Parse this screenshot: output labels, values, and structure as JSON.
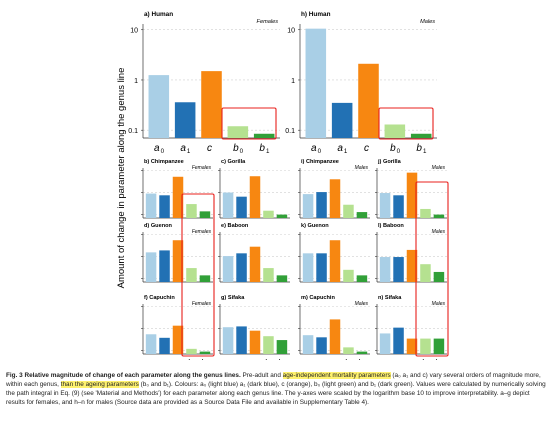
{
  "colors": {
    "a0": "#a9cfe6",
    "a1": "#2271b4",
    "c": "#f78711",
    "b0": "#b5e190",
    "b1": "#31a038",
    "highlight_box": "#e8201c",
    "caption_highlight": "#fff26e"
  },
  "figure": {
    "ylabel": "Amount of change in parameter along the genus line",
    "param_symbols": [
      "a",
      "a",
      "c",
      "b",
      "b"
    ],
    "param_subscripts": [
      "0",
      "1",
      "",
      "0",
      "1"
    ],
    "big_ticks": [
      "10",
      "1",
      "0.1"
    ],
    "small_ticks": [
      "10",
      "1",
      "0.1"
    ],
    "females": "Females",
    "males": "Males"
  },
  "chart_data": [
    {
      "panel": "a",
      "title": "a) Human",
      "sex": "Females",
      "type": "bar",
      "log_scale": true,
      "ylim": [
        0.07,
        13
      ],
      "categories": [
        "a0",
        "a1",
        "c",
        "b0",
        "b1"
      ],
      "values": [
        1.25,
        0.36,
        1.5,
        0.12,
        0.085
      ]
    },
    {
      "panel": "h",
      "title": "h) Human",
      "sex": "Males",
      "type": "bar",
      "log_scale": true,
      "ylim": [
        0.07,
        13
      ],
      "categories": [
        "a0",
        "a1",
        "c",
        "b0",
        "b1"
      ],
      "values": [
        10.5,
        0.35,
        2.1,
        0.13,
        0.085
      ]
    },
    {
      "panel": "b",
      "title": "b) Chimpanzee",
      "sex": "Females",
      "type": "bar",
      "log_scale": true,
      "ylim": [
        0.07,
        13
      ],
      "categories": [
        "a0",
        "a1",
        "c",
        "b0",
        "b1"
      ],
      "values": [
        0.9,
        0.75,
        5.2,
        0.3,
        0.14
      ]
    },
    {
      "panel": "c",
      "title": "c) Gorilla",
      "sex": "",
      "type": "bar",
      "log_scale": true,
      "ylim": [
        0.07,
        13
      ],
      "categories": [
        "a0",
        "a1",
        "c",
        "b0",
        "b1"
      ],
      "values": [
        1.0,
        0.65,
        5.5,
        0.15,
        0.1
      ]
    },
    {
      "panel": "i",
      "title": "i) Chimpanzee",
      "sex": "Males",
      "type": "bar",
      "log_scale": true,
      "ylim": [
        0.07,
        13
      ],
      "categories": [
        "a0",
        "a1",
        "c",
        "b0",
        "b1"
      ],
      "values": [
        0.85,
        1.05,
        4.0,
        0.28,
        0.13
      ]
    },
    {
      "panel": "j",
      "title": "j) Gorilla",
      "sex": "Males",
      "type": "bar",
      "log_scale": true,
      "ylim": [
        0.07,
        13
      ],
      "categories": [
        "a0",
        "a1",
        "c",
        "b0",
        "b1"
      ],
      "values": [
        0.95,
        0.75,
        8.0,
        0.18,
        0.1
      ]
    },
    {
      "panel": "d",
      "title": "d) Guenon",
      "sex": "Females",
      "type": "bar",
      "log_scale": true,
      "ylim": [
        0.07,
        13
      ],
      "categories": [
        "a0",
        "a1",
        "c",
        "b0",
        "b1"
      ],
      "values": [
        1.55,
        1.9,
        5.5,
        0.3,
        0.14
      ]
    },
    {
      "panel": "e",
      "title": "e) Baboon",
      "sex": "",
      "type": "bar",
      "log_scale": true,
      "ylim": [
        0.07,
        13
      ],
      "categories": [
        "a0",
        "a1",
        "c",
        "b0",
        "b1"
      ],
      "values": [
        1.05,
        1.4,
        2.8,
        0.3,
        0.14
      ]
    },
    {
      "panel": "k",
      "title": "k) Guenon",
      "sex": "",
      "type": "bar",
      "log_scale": true,
      "ylim": [
        0.07,
        13
      ],
      "categories": [
        "a0",
        "a1",
        "c",
        "b0",
        "b1"
      ],
      "values": [
        1.4,
        1.4,
        5.5,
        0.25,
        0.14
      ]
    },
    {
      "panel": "l",
      "title": "l) Baboon",
      "sex": "Males",
      "type": "bar",
      "log_scale": true,
      "ylim": [
        0.07,
        13
      ],
      "categories": [
        "a0",
        "a1",
        "c",
        "b0",
        "b1"
      ],
      "values": [
        0.95,
        0.95,
        2.0,
        0.45,
        0.2
      ]
    },
    {
      "panel": "f",
      "title": "f) Capuchin",
      "sex": "Females",
      "type": "bar",
      "log_scale": true,
      "ylim": [
        0.07,
        13
      ],
      "categories": [
        "a0",
        "a1",
        "c",
        "b0",
        "b1"
      ],
      "values": [
        0.55,
        0.38,
        1.35,
        0.12,
        0.09
      ]
    },
    {
      "panel": "g",
      "title": "g) Sifaka",
      "sex": "",
      "type": "bar",
      "log_scale": true,
      "ylim": [
        0.07,
        13
      ],
      "categories": [
        "a0",
        "a1",
        "c",
        "b0",
        "b1"
      ],
      "values": [
        1.15,
        1.25,
        0.8,
        0.45,
        0.3
      ]
    },
    {
      "panel": "m",
      "title": "m) Capuchin",
      "sex": "Males",
      "type": "bar",
      "log_scale": true,
      "ylim": [
        0.07,
        13
      ],
      "categories": [
        "a0",
        "a1",
        "c",
        "b0",
        "b1"
      ],
      "values": [
        0.5,
        0.4,
        2.6,
        0.14,
        0.09
      ]
    },
    {
      "panel": "n",
      "title": "n) Sifaka",
      "sex": "Males",
      "type": "bar",
      "log_scale": true,
      "ylim": [
        0.07,
        13
      ],
      "categories": [
        "a0",
        "a1",
        "c",
        "b0",
        "b1"
      ],
      "values": [
        0.6,
        1.1,
        0.35,
        0.35,
        0.35
      ]
    }
  ],
  "caption": {
    "lead": "Fig. 3 Relative magnitude of change of each parameter along the genus lines.",
    "t1": " Pre-adult and ",
    "h1": "age-independent mortality parameters",
    "t2": " (a₀ a₁ and c) vary several orders of magnitude more, within each genus, ",
    "h2": "than the ageing parameters",
    "t3": " (b₀ and b₁). Colours: a₀ (light blue) a₁ (dark blue), c (orange), b₀ (light green) and b₁ (dark green). Values were calculated by numerically solving the path integral in Eq. (9) (see 'Material and Methods') for each parameter along each genus line. The y-axes were scaled by the logarithm base 10 to improve interpretability. a–g depict results for females, and h–n for males (Source data are provided as a Source Data File and available in Supplementary Table 4)."
  }
}
